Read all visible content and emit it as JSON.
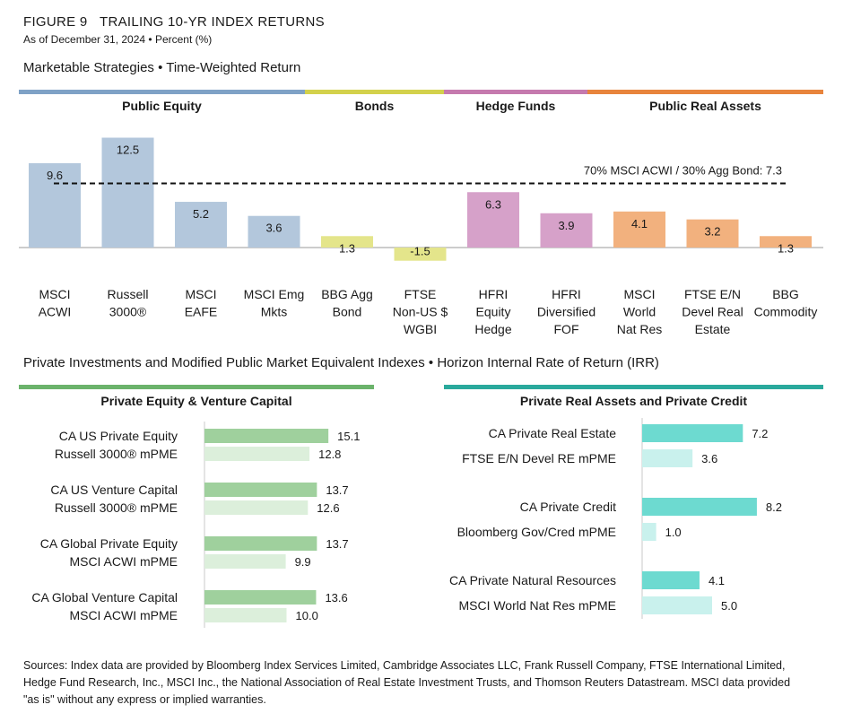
{
  "figure": {
    "number": "FIGURE 9",
    "title": "TRAILING 10-YR INDEX RETURNS",
    "subtitle": "As of December 31, 2024 • Percent (%)"
  },
  "section1": {
    "title": "Marketable Strategies • Time-Weighted Return",
    "groups": [
      {
        "label": "Public Equity",
        "color": "#7fa2c6"
      },
      {
        "label": "Bonds",
        "color": "#d3d14c"
      },
      {
        "label": "Hedge Funds",
        "color": "#c57aae"
      },
      {
        "label": "Public Real Assets",
        "color": "#e8843c"
      }
    ]
  },
  "section2": {
    "title": "Private Investments and Modified Public Market Equivalent Indexes • Horizon Internal Rate of Return (IRR)",
    "left_title": "Private Equity & Venture Capital",
    "right_title": "Private Real Assets and Private Credit",
    "left_color": "#6bb36b",
    "right_color": "#2aa99c"
  },
  "chart_data": [
    {
      "type": "bar",
      "title": "Marketable Strategies • Time-Weighted Return",
      "categories": [
        "MSCI ACWI",
        "Russell 3000®",
        "MSCI EAFE",
        "MSCI Emg Mkts",
        "BBG Agg Bond",
        "FTSE Non-US $ WGBI",
        "HFRI Equity Hedge",
        "HFRI Diversified FOF",
        "MSCI World Nat Res",
        "FTSE E/N Devel Real Estate",
        "BBG Commodity"
      ],
      "category_lines": [
        [
          "MSCI",
          "ACWI"
        ],
        [
          "Russell",
          "3000®"
        ],
        [
          "MSCI",
          "EAFE"
        ],
        [
          "MSCI Emg",
          "Mkts"
        ],
        [
          "BBG Agg",
          "Bond"
        ],
        [
          "FTSE",
          "Non-US $",
          "WGBI"
        ],
        [
          "HFRI",
          "Equity",
          "Hedge"
        ],
        [
          "HFRI",
          "Diversified",
          "FOF"
        ],
        [
          "MSCI",
          "World",
          "Nat Res"
        ],
        [
          "FTSE E/N",
          "Devel Real",
          "Estate"
        ],
        [
          "BBG",
          "Commodity"
        ]
      ],
      "values": [
        9.6,
        12.5,
        5.2,
        3.6,
        1.3,
        -1.5,
        6.3,
        3.9,
        4.1,
        3.2,
        1.3
      ],
      "value_labels": [
        "9.6",
        "12.5",
        "5.2",
        "3.6",
        "1.3",
        "-1.5",
        "6.3",
        "3.9",
        "4.1",
        "3.2",
        "1.3"
      ],
      "colors": [
        "#b3c7dc",
        "#b3c7dc",
        "#b3c7dc",
        "#b3c7dc",
        "#e4e58b",
        "#e4e58b",
        "#d6a1c9",
        "#d6a1c9",
        "#f2b17e",
        "#f2b17e",
        "#f2b17e"
      ],
      "reference_line": {
        "label": "70% MSCI ACWI / 30% Agg Bond: 7.3",
        "value": 7.3
      }
    },
    {
      "type": "bar",
      "orientation": "horizontal",
      "title": "Private Equity & Venture Capital",
      "categories": [
        "CA US Private Equity",
        "Russell 3000® mPME",
        "CA US Venture Capital",
        "Russell 3000® mPME",
        "CA Global Private Equity",
        "MSCI ACWI mPME",
        "CA Global Venture Capital",
        "MSCI ACWI mPME"
      ],
      "values": [
        15.1,
        12.8,
        13.7,
        12.6,
        13.7,
        9.9,
        13.6,
        10.0
      ],
      "value_labels": [
        "15.1",
        "12.8",
        "13.7",
        "12.6",
        "13.7",
        "9.9",
        "13.6",
        "10.0"
      ],
      "colors": [
        "#9fd09d",
        "#dcefdb",
        "#9fd09d",
        "#dcefdb",
        "#9fd09d",
        "#dcefdb",
        "#9fd09d",
        "#dcefdb"
      ]
    },
    {
      "type": "bar",
      "orientation": "horizontal",
      "title": "Private Real Assets and Private Credit",
      "categories": [
        "CA Private Real Estate",
        "FTSE E/N Devel RE mPME",
        "CA Private Credit",
        "Bloomberg Gov/Cred mPME",
        "CA Private Natural Resources",
        "MSCI World Nat Res mPME"
      ],
      "values": [
        7.2,
        3.6,
        8.2,
        1.0,
        4.1,
        5.0
      ],
      "value_labels": [
        "7.2",
        "3.6",
        "8.2",
        "1.0",
        "4.1",
        "5.0"
      ],
      "colors": [
        "#6ddad0",
        "#c9f1ed",
        "#6ddad0",
        "#c9f1ed",
        "#6ddad0",
        "#c9f1ed"
      ]
    }
  ],
  "sources": "Sources: Index data are provided by Bloomberg Index Services Limited, Cambridge Associates LLC, Frank Russell Company, FTSE International Limited, Hedge Fund Research, Inc., MSCI Inc., the National Association of Real Estate Investment Trusts, and Thomson Reuters Datastream. MSCI data provided \"as is\" without any express or implied warranties."
}
